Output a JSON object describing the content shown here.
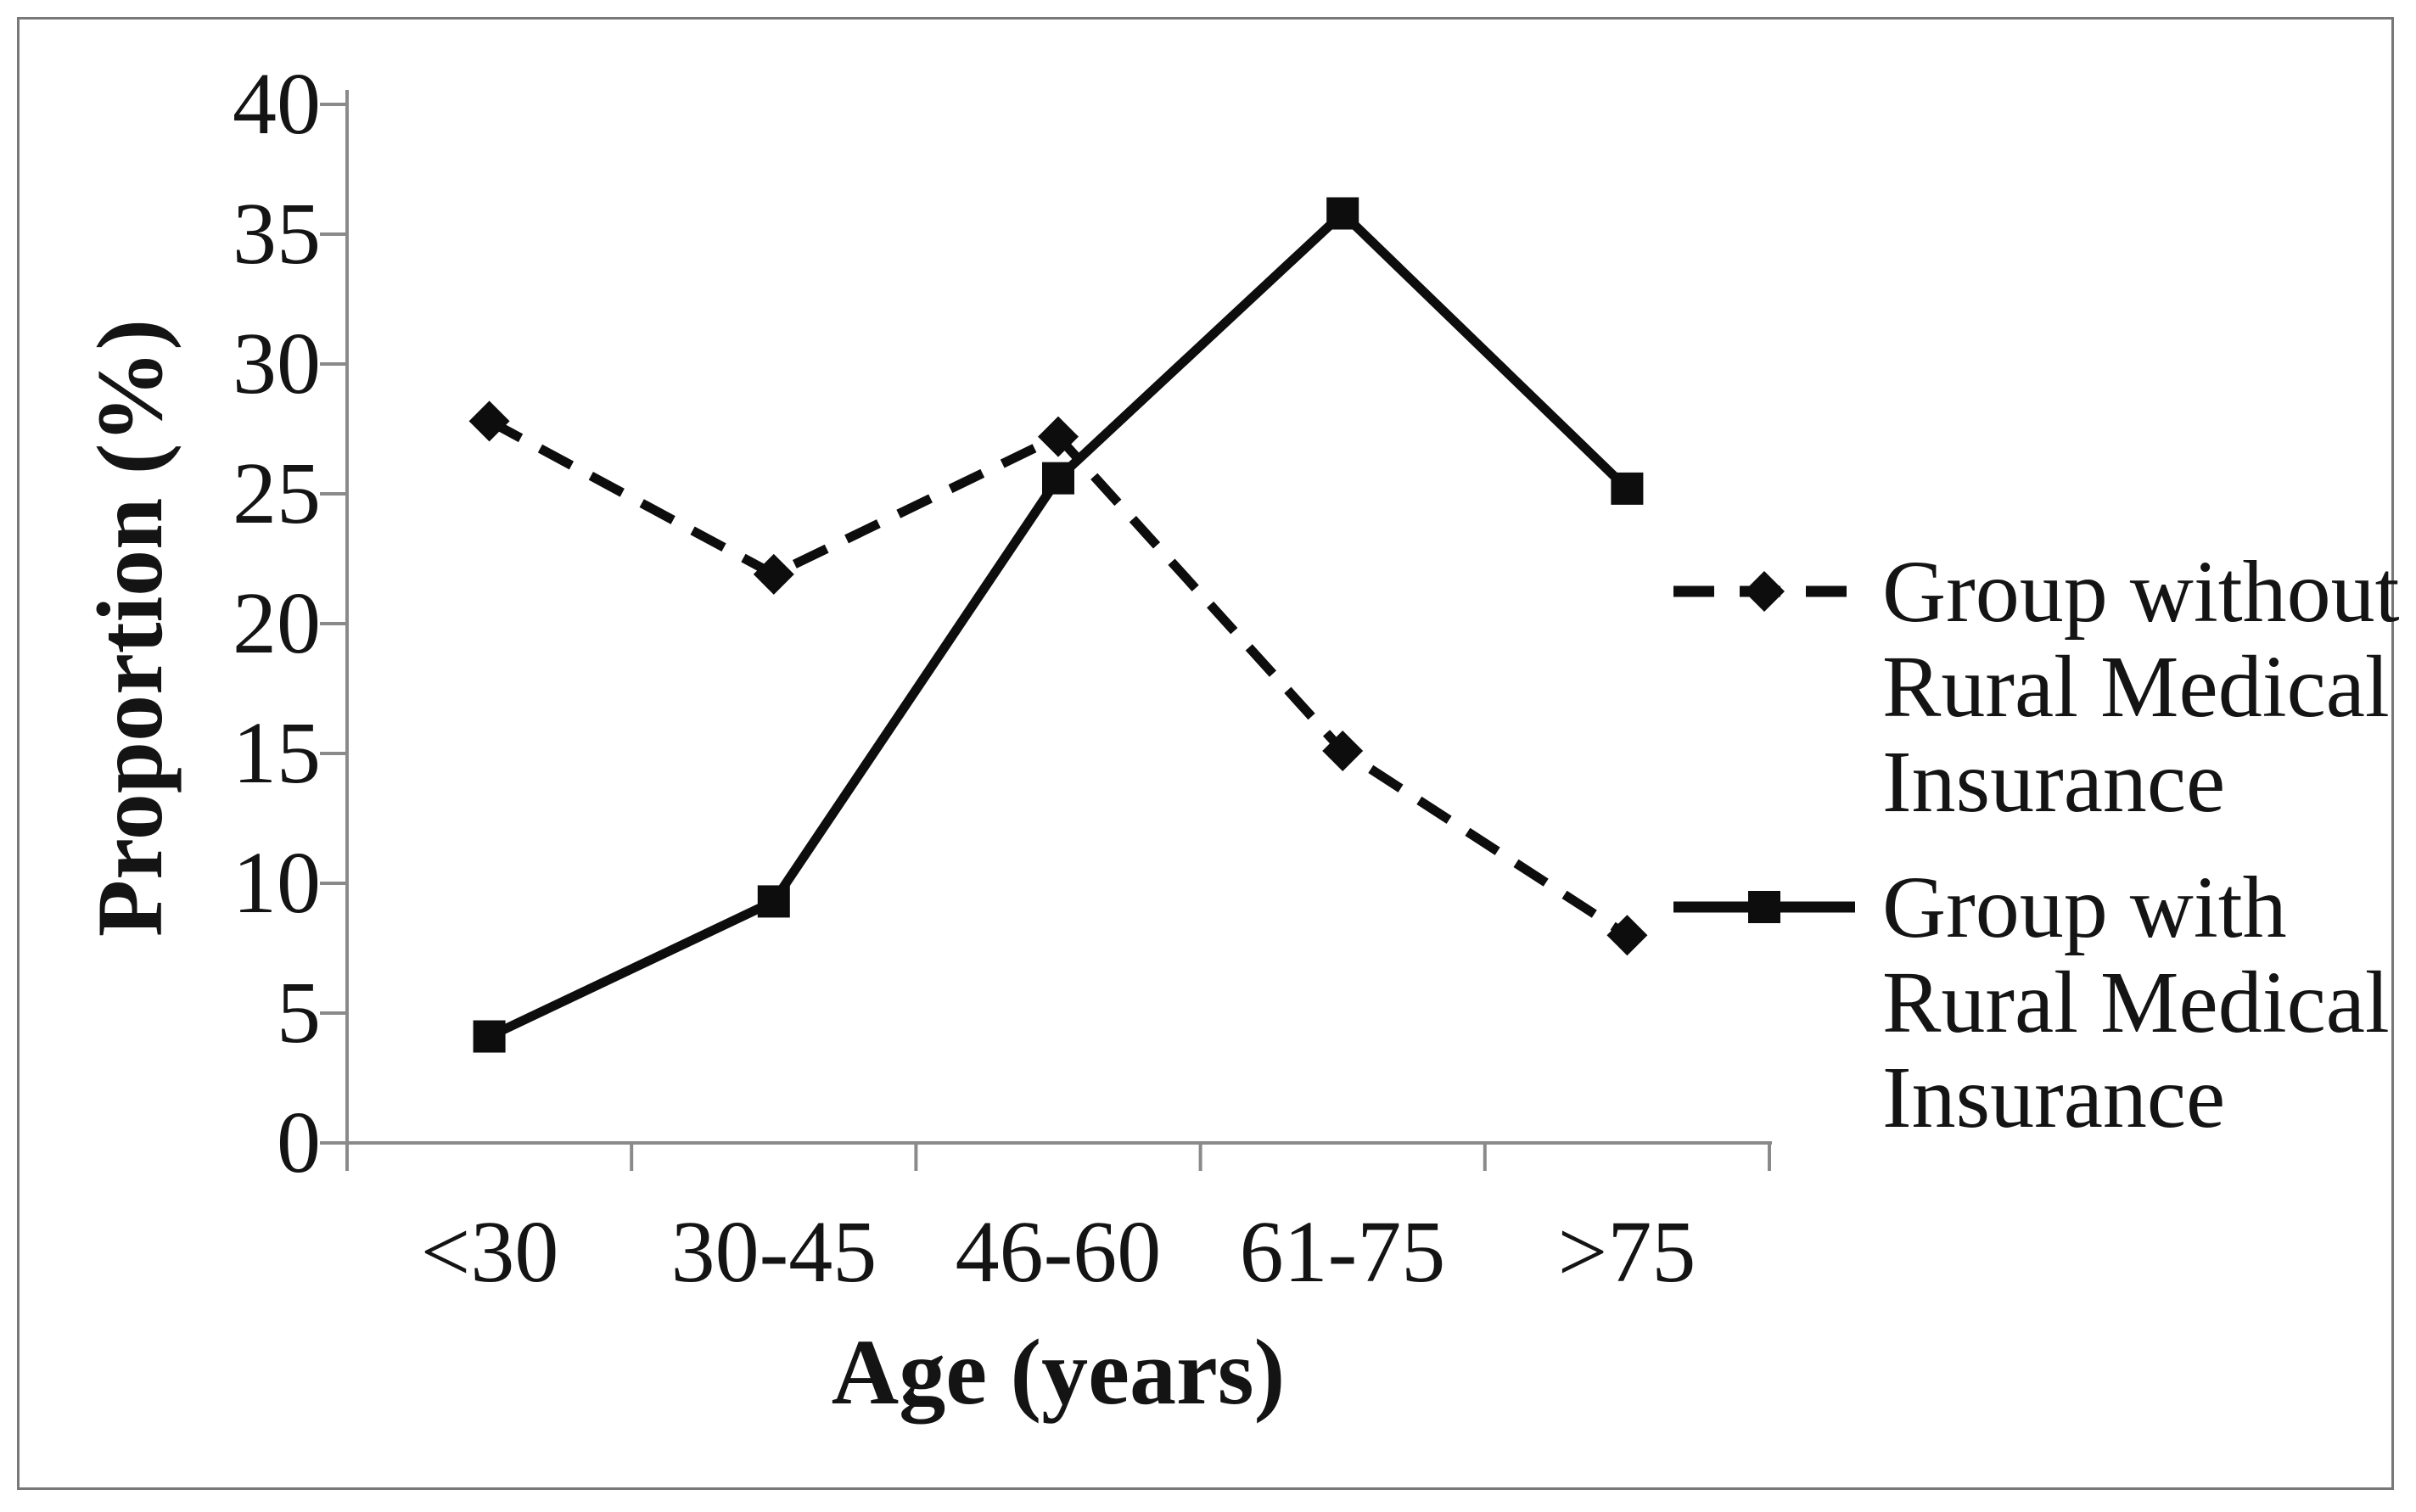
{
  "chart_data": {
    "type": "line",
    "title": "",
    "xlabel": "Age (years)",
    "ylabel": "Proportion (%)",
    "categories": [
      "<30",
      "30-45",
      "46-60",
      "61-75",
      ">75"
    ],
    "ylim": [
      0,
      40
    ],
    "y_tick_step": 5,
    "y_tick_labels": [
      "40",
      "35",
      "30",
      "25",
      "20",
      "15",
      "10",
      "5",
      "0"
    ],
    "grid": false,
    "legend_position": "right",
    "series": [
      {
        "name": "Group without Rural Medical Insurance",
        "legend_lines": [
          "Group without",
          "Rural Medical",
          "Insurance"
        ],
        "line_style": "dashed",
        "marker": "diamond",
        "values": [
          27.8,
          21.9,
          27.2,
          15.1,
          8.0
        ]
      },
      {
        "name": "Group with Rural Medical Insurance",
        "legend_lines": [
          "Group with",
          "Rural Medical",
          "Insurance"
        ],
        "line_style": "solid",
        "marker": "square",
        "values": [
          4.1,
          9.3,
          25.6,
          35.8,
          25.2
        ]
      }
    ],
    "colors": {
      "series_line": "#0d0d0d",
      "axis": "#8a8a8a",
      "text": "#141414",
      "figure_border": "#787878"
    }
  }
}
